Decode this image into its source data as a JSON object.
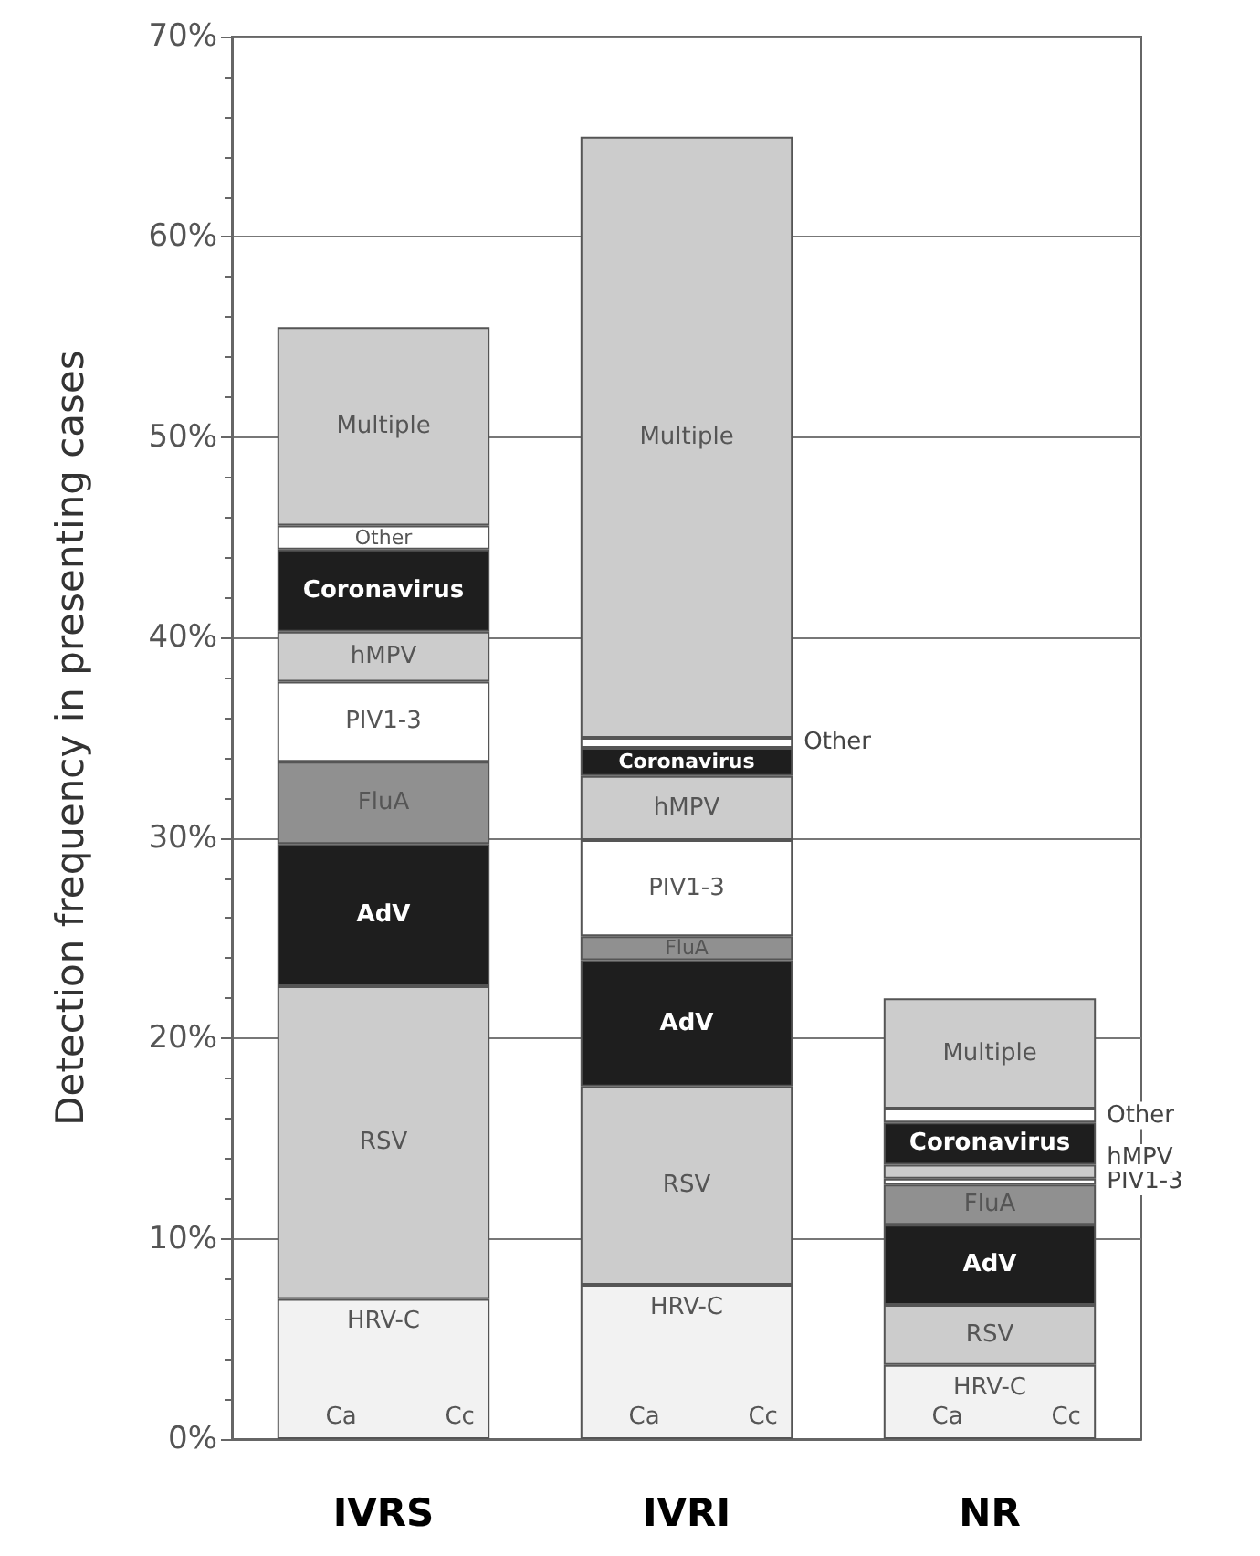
{
  "chart_data": {
    "type": "bar",
    "stacked": true,
    "ylabel": "Detection frequency in presenting cases",
    "categories": [
      "IVRS",
      "IVRI",
      "NR"
    ],
    "series": [
      {
        "name": "HRV-C",
        "color": "#f2f2f2",
        "values": [
          7.0,
          7.7,
          3.7
        ]
      },
      {
        "name": "RSV",
        "color": "#cccccc",
        "values": [
          15.6,
          9.9,
          3.0
        ]
      },
      {
        "name": "AdV",
        "color": "#1e1e1e",
        "values": [
          7.1,
          6.3,
          4.0
        ]
      },
      {
        "name": "FluA",
        "color": "#909090",
        "values": [
          4.1,
          1.2,
          2.0
        ]
      },
      {
        "name": "PIV1-3",
        "color": "#ffffff",
        "values": [
          4.0,
          4.8,
          0.3
        ]
      },
      {
        "name": "hMPV",
        "color": "#cccccc",
        "values": [
          2.5,
          3.2,
          0.7
        ]
      },
      {
        "name": "Coronavirus",
        "color": "#1e1e1e",
        "values": [
          4.1,
          1.4,
          2.1
        ]
      },
      {
        "name": "Other",
        "color": "#ffffff",
        "values": [
          1.2,
          0.5,
          0.7
        ]
      },
      {
        "name": "Multiple",
        "color": "#cccccc",
        "values": [
          9.9,
          30.0,
          5.5
        ]
      }
    ],
    "annotations": [
      "Ca",
      "Cc",
      "Ca",
      "Cc",
      "Ca",
      "Cc"
    ],
    "ylim": [
      0,
      70
    ],
    "yticks": [
      {
        "value": 0,
        "label": "0%"
      },
      {
        "value": 10,
        "label": "10%"
      },
      {
        "value": 20,
        "label": "20%"
      },
      {
        "value": 30,
        "label": "30%"
      },
      {
        "value": 40,
        "label": "40%"
      },
      {
        "value": 50,
        "label": "50%"
      },
      {
        "value": 60,
        "label": "60%"
      },
      {
        "value": 70,
        "label": "70%"
      }
    ],
    "grid": "y",
    "legend": false
  }
}
